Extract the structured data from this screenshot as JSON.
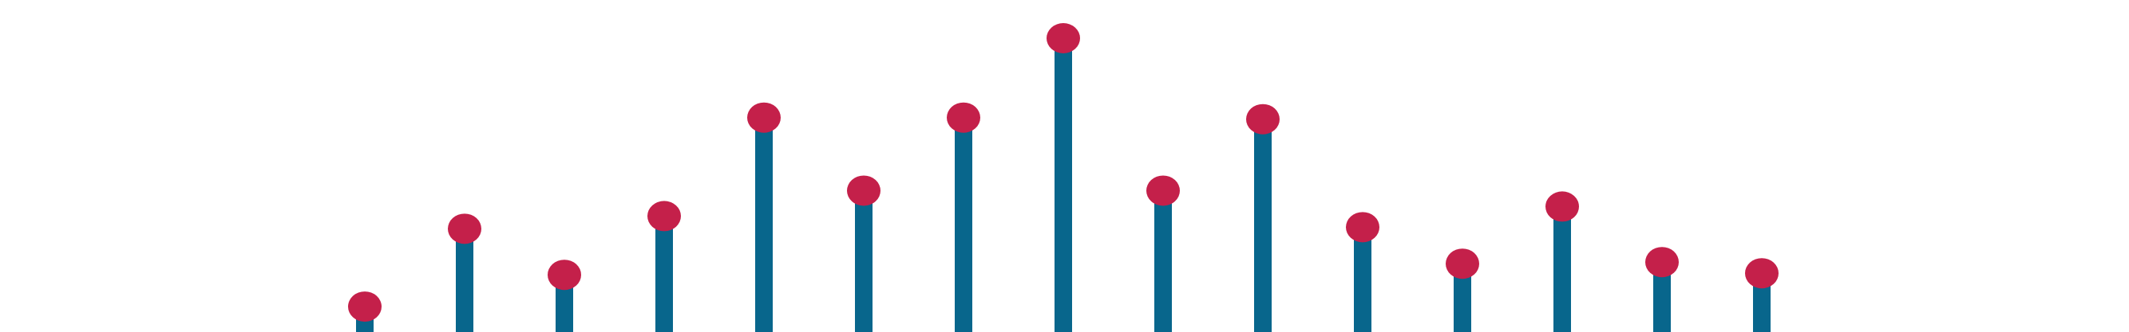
{
  "chart_data": {
    "type": "lollipop",
    "x": [
      1,
      2,
      3,
      4,
      5,
      6,
      7,
      8,
      9,
      10,
      11,
      12,
      13,
      14,
      15
    ],
    "values": [
      16,
      65,
      36,
      73,
      135,
      89,
      135,
      185,
      89,
      134,
      66,
      43,
      79,
      44,
      37
    ],
    "ylim": [
      0,
      210
    ],
    "grid": false,
    "legend": "none"
  },
  "colors": {
    "stem": "#08668c",
    "marker": "#c4204a",
    "background": "#ffffff"
  }
}
